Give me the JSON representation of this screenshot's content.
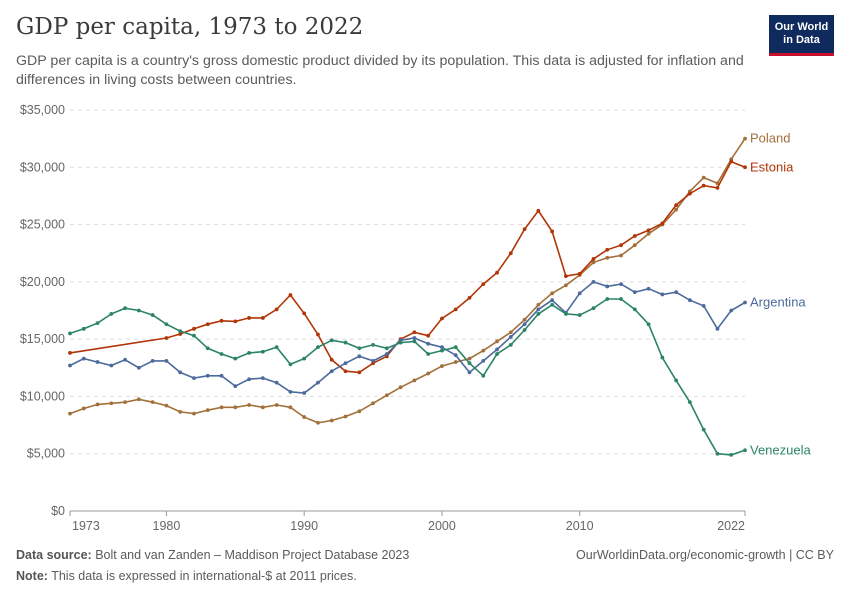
{
  "header": {
    "title": "GDP per capita, 1973 to 2022",
    "subtitle": "GDP per capita is a country's gross domestic product divided by its population. This data is adjusted for inflation and differences in living costs between countries.",
    "logo_line1": "Our World",
    "logo_line2": "in Data"
  },
  "footer": {
    "source_label": "Data source:",
    "source_text": "Bolt and van Zanden – Maddison Project Database 2023",
    "note_label": "Note:",
    "note_text": "This data is expressed in international-$ at 2011 prices.",
    "credit": "OurWorldinData.org/economic-growth | CC BY"
  },
  "chart_data": {
    "type": "line",
    "title": "GDP per capita, 1973 to 2022",
    "xlim": [
      1973,
      2022
    ],
    "ylim": [
      0,
      35000
    ],
    "x_ticks": [
      1973,
      1980,
      1990,
      2000,
      2010,
      2022
    ],
    "x_tick_labels": [
      "1973",
      "1980",
      "1990",
      "2000",
      "2010",
      "2022"
    ],
    "y_ticks": [
      0,
      5000,
      10000,
      15000,
      20000,
      25000,
      30000,
      35000
    ],
    "y_tick_labels": [
      "$0",
      "$5,000",
      "$10,000",
      "$15,000",
      "$20,000",
      "$25,000",
      "$30,000",
      "$35,000"
    ],
    "grid": "horizontal dashed",
    "legend": "labels at line ends (right)",
    "series": [
      {
        "name": "Poland",
        "color": "#a2703b",
        "x": [
          1973,
          1974,
          1975,
          1976,
          1977,
          1978,
          1979,
          1980,
          1981,
          1982,
          1983,
          1984,
          1985,
          1986,
          1987,
          1988,
          1989,
          1990,
          1991,
          1992,
          1993,
          1994,
          1995,
          1996,
          1997,
          1998,
          1999,
          2000,
          2001,
          2002,
          2003,
          2004,
          2005,
          2006,
          2007,
          2008,
          2009,
          2010,
          2011,
          2012,
          2013,
          2014,
          2015,
          2016,
          2017,
          2018,
          2019,
          2020,
          2021,
          2022
        ],
        "y": [
          8500,
          8950,
          9300,
          9400,
          9500,
          9750,
          9500,
          9200,
          8650,
          8500,
          8800,
          9050,
          9050,
          9250,
          9050,
          9250,
          9050,
          8200,
          7700,
          7900,
          8250,
          8700,
          9400,
          10100,
          10800,
          11400,
          12000,
          12650,
          13000,
          13300,
          14000,
          14800,
          15600,
          16700,
          18000,
          19000,
          19700,
          20600,
          21700,
          22100,
          22300,
          23200,
          24200,
          25000,
          26300,
          27900,
          29100,
          28600,
          30700,
          32500
        ]
      },
      {
        "name": "Estonia",
        "color": "#b13507",
        "x": [
          1973,
          1980,
          1981,
          1982,
          1983,
          1984,
          1985,
          1986,
          1987,
          1988,
          1989,
          1990,
          1991,
          1992,
          1993,
          1994,
          1995,
          1996,
          1997,
          1998,
          1999,
          2000,
          2001,
          2002,
          2003,
          2004,
          2005,
          2006,
          2007,
          2008,
          2009,
          2010,
          2011,
          2012,
          2013,
          2014,
          2015,
          2016,
          2017,
          2018,
          2019,
          2020,
          2021,
          2022
        ],
        "y": [
          13800,
          15100,
          15450,
          15900,
          16300,
          16600,
          16550,
          16850,
          16850,
          17600,
          18850,
          17250,
          15400,
          13200,
          12200,
          12100,
          12900,
          13500,
          15000,
          15600,
          15300,
          16800,
          17600,
          18600,
          19800,
          20800,
          22500,
          24600,
          26200,
          24400,
          20500,
          20700,
          22000,
          22800,
          23200,
          24000,
          24500,
          25100,
          26700,
          27700,
          28400,
          28200,
          30500,
          30000
        ]
      },
      {
        "name": "Argentina",
        "color": "#4c6a9c",
        "x": [
          1973,
          1974,
          1975,
          1976,
          1977,
          1978,
          1979,
          1980,
          1981,
          1982,
          1983,
          1984,
          1985,
          1986,
          1987,
          1988,
          1989,
          1990,
          1991,
          1992,
          1993,
          1994,
          1995,
          1996,
          1997,
          1998,
          1999,
          2000,
          2001,
          2002,
          2003,
          2004,
          2005,
          2006,
          2007,
          2008,
          2009,
          2010,
          2011,
          2012,
          2013,
          2014,
          2015,
          2016,
          2017,
          2018,
          2019,
          2020,
          2021,
          2022
        ],
        "y": [
          12700,
          13300,
          13000,
          12700,
          13200,
          12500,
          13100,
          13100,
          12100,
          11600,
          11800,
          11800,
          10900,
          11500,
          11600,
          11200,
          10400,
          10300,
          11200,
          12200,
          12900,
          13500,
          13100,
          13700,
          14900,
          15100,
          14600,
          14300,
          13600,
          12100,
          13100,
          14100,
          15200,
          16300,
          17600,
          18400,
          17300,
          19000,
          20000,
          19600,
          19800,
          19100,
          19400,
          18900,
          19100,
          18400,
          17900,
          15900,
          17500,
          18200
        ]
      },
      {
        "name": "Venezuela",
        "color": "#2c8465",
        "x": [
          1973,
          1974,
          1975,
          1976,
          1977,
          1978,
          1979,
          1980,
          1981,
          1982,
          1983,
          1984,
          1985,
          1986,
          1987,
          1988,
          1989,
          1990,
          1991,
          1992,
          1993,
          1994,
          1995,
          1996,
          1997,
          1998,
          1999,
          2000,
          2001,
          2002,
          2003,
          2004,
          2005,
          2006,
          2007,
          2008,
          2009,
          2010,
          2011,
          2012,
          2013,
          2014,
          2015,
          2016,
          2017,
          2018,
          2019,
          2020,
          2021,
          2022
        ],
        "y": [
          15500,
          15900,
          16400,
          17200,
          17700,
          17500,
          17100,
          16300,
          15700,
          15300,
          14200,
          13700,
          13300,
          13800,
          13900,
          14300,
          12800,
          13300,
          14300,
          14900,
          14700,
          14200,
          14500,
          14200,
          14700,
          14800,
          13700,
          14000,
          14300,
          12900,
          11800,
          13700,
          14500,
          15800,
          17200,
          18000,
          17200,
          17100,
          17700,
          18500,
          18500,
          17600,
          16300,
          13400,
          11400,
          9500,
          7100,
          5000,
          4900,
          5300
        ]
      }
    ]
  }
}
